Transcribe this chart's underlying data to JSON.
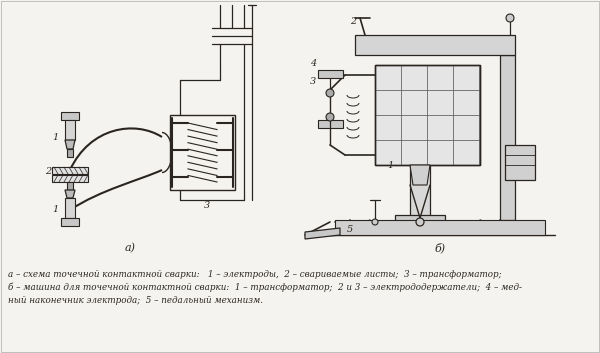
{
  "bg_fill": "#f5f3ef",
  "line_color": "#2a2520",
  "label_a": "а)",
  "label_b": "б)",
  "caption_line1": "а – схема точечной контактной сварки:   1 – электроды,  2 – свариваемые листы;  3 – трансформатор;",
  "caption_line2": "б – машина для точечной контактной сварки:  1 – трансформатор;  2 и 3 – электрододержатели;  4 – мед-",
  "caption_line3": "ный наконечник электрода;  5 – педальный механизм."
}
